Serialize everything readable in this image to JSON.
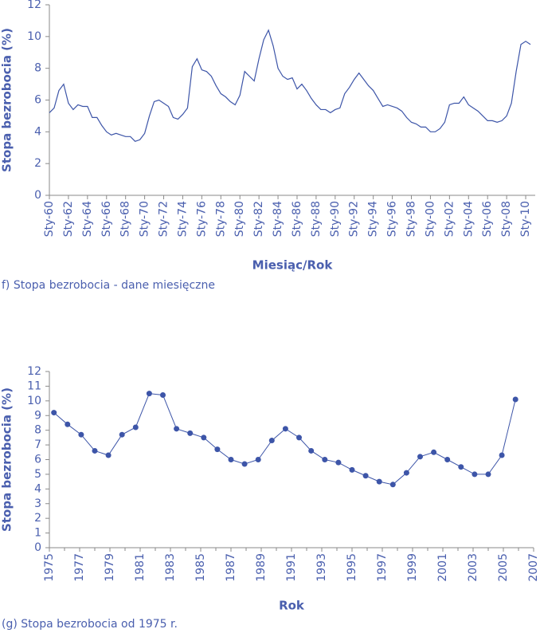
{
  "chart_data": [
    {
      "type": "line",
      "caption": "f) Stopa bezrobocia - dane miesięczne",
      "xlabel": "Miesiąc/Rok",
      "ylabel": "Stopa bezrobocia (%)",
      "color": "#3d55a8",
      "categories": [
        "Sty-60",
        null,
        null,
        null,
        "Sty-62",
        null,
        null,
        null,
        "Sty-64",
        null,
        null,
        null,
        "Sty-66",
        null,
        null,
        null,
        "Sty-68",
        null,
        null,
        null,
        "Sty-70",
        null,
        null,
        null,
        "Sty-72",
        null,
        null,
        null,
        "Sty-74",
        null,
        null,
        null,
        "Sty-76",
        null,
        null,
        null,
        "Sty-78",
        null,
        null,
        null,
        "Sty-80",
        null,
        null,
        null,
        "Sty-82",
        null,
        null,
        null,
        "Sty-84",
        null,
        null,
        null,
        "Sty-86",
        null,
        null,
        null,
        "Sty-88",
        null,
        null,
        null,
        "Sty-90",
        null,
        null,
        null,
        "Sty-92",
        null,
        null,
        null,
        "Sty-94",
        null,
        null,
        null,
        "Sty-96",
        null,
        null,
        null,
        "Sty-98",
        null,
        null,
        null,
        "Sty-00",
        null,
        null,
        null,
        "Sty-02",
        null,
        null,
        null,
        "Sty-04",
        null,
        null,
        null,
        "Sty-06",
        null,
        null,
        null,
        "Sty-08",
        null,
        null,
        null,
        "Sty-10",
        null
      ],
      "values": [
        5.2,
        5.5,
        6.6,
        7.0,
        5.8,
        5.4,
        5.7,
        5.6,
        5.6,
        4.9,
        4.9,
        4.4,
        4.0,
        3.8,
        3.9,
        3.8,
        3.7,
        3.7,
        3.4,
        3.5,
        3.9,
        5.0,
        5.9,
        6.0,
        5.8,
        5.6,
        4.9,
        4.8,
        5.1,
        5.5,
        8.1,
        8.6,
        7.9,
        7.8,
        7.5,
        6.9,
        6.4,
        6.2,
        5.9,
        5.7,
        6.3,
        7.8,
        7.5,
        7.2,
        8.6,
        9.8,
        10.4,
        9.4,
        8.0,
        7.5,
        7.3,
        7.4,
        6.7,
        7.0,
        6.6,
        6.1,
        5.7,
        5.4,
        5.4,
        5.2,
        5.4,
        5.5,
        6.4,
        6.8,
        7.3,
        7.7,
        7.3,
        6.9,
        6.6,
        6.1,
        5.6,
        5.7,
        5.6,
        5.5,
        5.3,
        4.9,
        4.6,
        4.5,
        4.3,
        4.3,
        4.0,
        4.0,
        4.2,
        4.6,
        5.7,
        5.8,
        5.8,
        6.2,
        5.7,
        5.5,
        5.3,
        5.0,
        4.7,
        4.7,
        4.6,
        4.7,
        5.0,
        5.8,
        7.8,
        9.5,
        9.7,
        9.5
      ],
      "ylim": [
        0,
        12
      ],
      "yticks": [
        0,
        2,
        4,
        6,
        8,
        10,
        12
      ]
    },
    {
      "type": "line",
      "markers": true,
      "caption": "(g) Stopa bezrobocia od 1975 r.",
      "xlabel": "Rok",
      "ylabel": "Stopa bezrobocia (%)",
      "color": "#3d55a8",
      "x": [
        1975.3,
        1976.2,
        1977.1,
        1978.0,
        1978.9,
        1979.8,
        1980.7,
        1981.6,
        1982.5,
        1983.4,
        1984.3,
        1985.2,
        1986.1,
        1987.0,
        1987.9,
        1988.8,
        1989.7,
        1990.6,
        1991.5,
        1992.3,
        1993.2,
        1994.1,
        1995.0,
        1995.9,
        1996.8,
        1997.7,
        1998.6,
        1999.5,
        2000.4,
        2001.3,
        2002.2,
        2003.1,
        2004.0,
        2004.9,
        2005.8
      ],
      "values": [
        9.2,
        8.4,
        7.7,
        6.6,
        6.3,
        7.7,
        8.2,
        10.5,
        10.4,
        8.1,
        7.8,
        7.5,
        6.7,
        6.0,
        5.7,
        6.0,
        7.3,
        8.1,
        7.5,
        6.6,
        6.0,
        5.8,
        5.3,
        4.9,
        4.5,
        4.3,
        5.1,
        6.2,
        6.5,
        6.0,
        5.5,
        5.0,
        5.0,
        6.3,
        10.1
      ],
      "xlim": [
        1975,
        2007
      ],
      "xticks": [
        1975,
        1977,
        1979,
        1981,
        1983,
        1985,
        1987,
        1989,
        1991,
        1993,
        1995,
        1997,
        1999,
        2001,
        2003,
        2005,
        2007
      ],
      "ylim": [
        0,
        12
      ],
      "yticks": [
        0,
        1,
        2,
        3,
        4,
        5,
        6,
        7,
        8,
        9,
        10,
        11,
        12
      ]
    }
  ]
}
